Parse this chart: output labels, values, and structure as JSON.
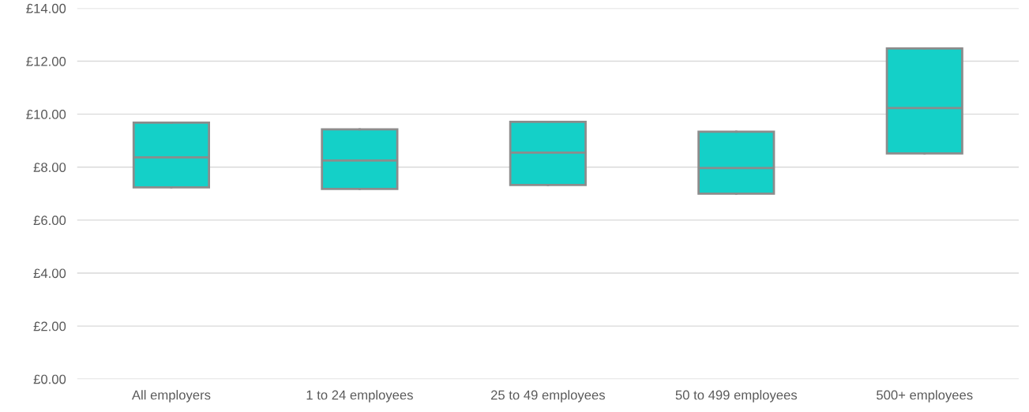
{
  "chart_data": {
    "type": "box",
    "categories": [
      "All employers",
      "1 to 24 employees",
      "25 to 49 employees",
      "50 to 499 employees",
      "500+ employees"
    ],
    "boxes": [
      {
        "low": 7.24,
        "q1": 7.24,
        "median": 8.37,
        "q3": 9.68,
        "high": 9.68
      },
      {
        "low": 7.18,
        "q1": 7.18,
        "median": 8.25,
        "q3": 9.43,
        "high": 9.43
      },
      {
        "low": 7.33,
        "q1": 7.33,
        "median": 8.55,
        "q3": 9.71,
        "high": 9.71
      },
      {
        "low": 7.0,
        "q1": 7.0,
        "median": 7.97,
        "q3": 9.34,
        "high": 9.34
      },
      {
        "low": 8.52,
        "q1": 8.52,
        "median": 10.23,
        "q3": 12.48,
        "high": 12.48
      }
    ],
    "color": "#14d0c8",
    "ylim": [
      0,
      14
    ],
    "yticks": [
      {
        "value": 0,
        "label": "£0.00"
      },
      {
        "value": 2,
        "label": "£2.00"
      },
      {
        "value": 4,
        "label": "£4.00"
      },
      {
        "value": 6,
        "label": "£6.00"
      },
      {
        "value": 8,
        "label": "£8.00"
      },
      {
        "value": 10,
        "label": "£10.00"
      },
      {
        "value": 12,
        "label": "£12.00"
      },
      {
        "value": 14,
        "label": "£14.00"
      }
    ],
    "grid": "y"
  }
}
